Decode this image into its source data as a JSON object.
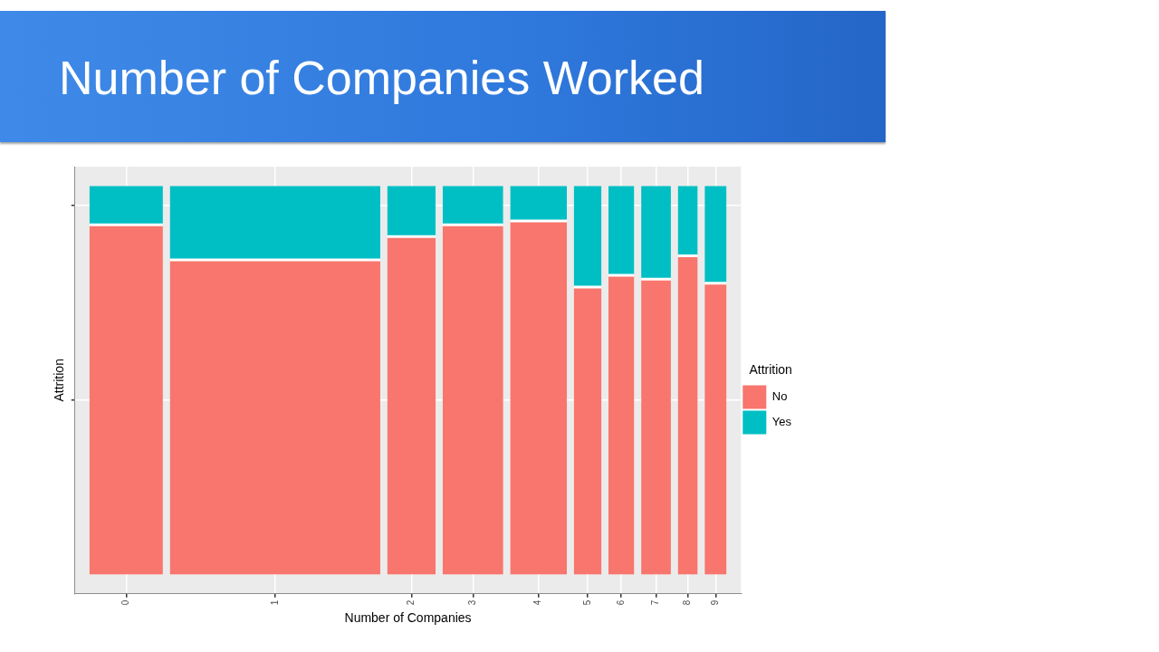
{
  "chart_data": {
    "type": "mosaic",
    "title": "Number of Companies Worked",
    "x_label": "Number of Companies",
    "y_label": "Attrition",
    "legend_title": "Attrition",
    "categories": [
      "0",
      "1",
      "2",
      "3",
      "4",
      "5",
      "6",
      "7",
      "8",
      "9"
    ],
    "widths": [
      188,
      538,
      124,
      155,
      145,
      71,
      66,
      76,
      51,
      56
    ],
    "series": [
      {
        "name": "No",
        "color": "#f8766d",
        "values": [
          0.9,
          0.81,
          0.87,
          0.9,
          0.91,
          0.74,
          0.77,
          0.76,
          0.82,
          0.75
        ]
      },
      {
        "name": "Yes",
        "color": "#00bfc4",
        "values": [
          0.1,
          0.19,
          0.13,
          0.1,
          0.09,
          0.26,
          0.23,
          0.24,
          0.18,
          0.25
        ]
      }
    ],
    "ylim": [
      -0.05,
      1.05
    ],
    "yticks": [
      0.45,
      0.95
    ],
    "grid": true,
    "stacked": true,
    "legend": "right",
    "tick_labels": "x"
  }
}
